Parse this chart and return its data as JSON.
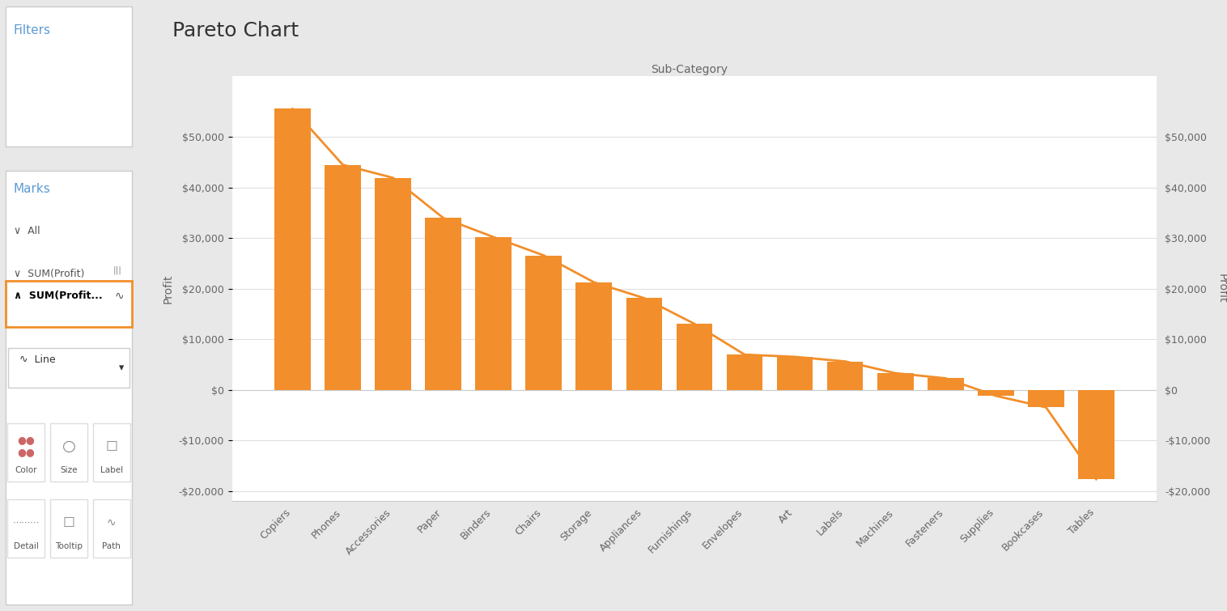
{
  "title": "Pareto Chart",
  "xlabel": "Sub-Category",
  "ylabel_left": "Profit",
  "ylabel_right": "Profit",
  "categories": [
    "Copiers",
    "Phones",
    "Accessories",
    "Paper",
    "Binders",
    "Chairs",
    "Storage",
    "Appliances",
    "Furnishings",
    "Envelopes",
    "Art",
    "Labels",
    "Machines",
    "Fasteners",
    "Supplies",
    "Bookcases",
    "Tables"
  ],
  "bar_values": [
    55617,
    44516,
    41937,
    34001,
    30221,
    26590,
    21278,
    18138,
    13059,
    6964,
    6528,
    5621,
    3295,
    2278,
    -1189,
    -3473,
    -17725
  ],
  "line_values": [
    55617,
    44516,
    41937,
    34001,
    30221,
    26590,
    21278,
    18138,
    13059,
    6964,
    6528,
    5621,
    3295,
    2278,
    -1189,
    -3473,
    -17725
  ],
  "bar_color": "#F28E2B",
  "line_color": "#F28E2B",
  "background_color": "#e8e8e8",
  "panel_bg": "#f2f2f2",
  "chart_bg": "#ffffff",
  "grid_color": "#e0e0e0",
  "text_color": "#666666",
  "title_color": "#333333",
  "sidebar_text_color": "#5b9bd5",
  "ylim": [
    -22000,
    62000
  ],
  "yticks": [
    -20000,
    -10000,
    0,
    10000,
    20000,
    30000,
    40000,
    50000
  ],
  "title_fontsize": 18,
  "axis_label_fontsize": 10,
  "tick_fontsize": 9,
  "sidebar_title_fontsize": 11,
  "sidebar_item_fontsize": 9
}
